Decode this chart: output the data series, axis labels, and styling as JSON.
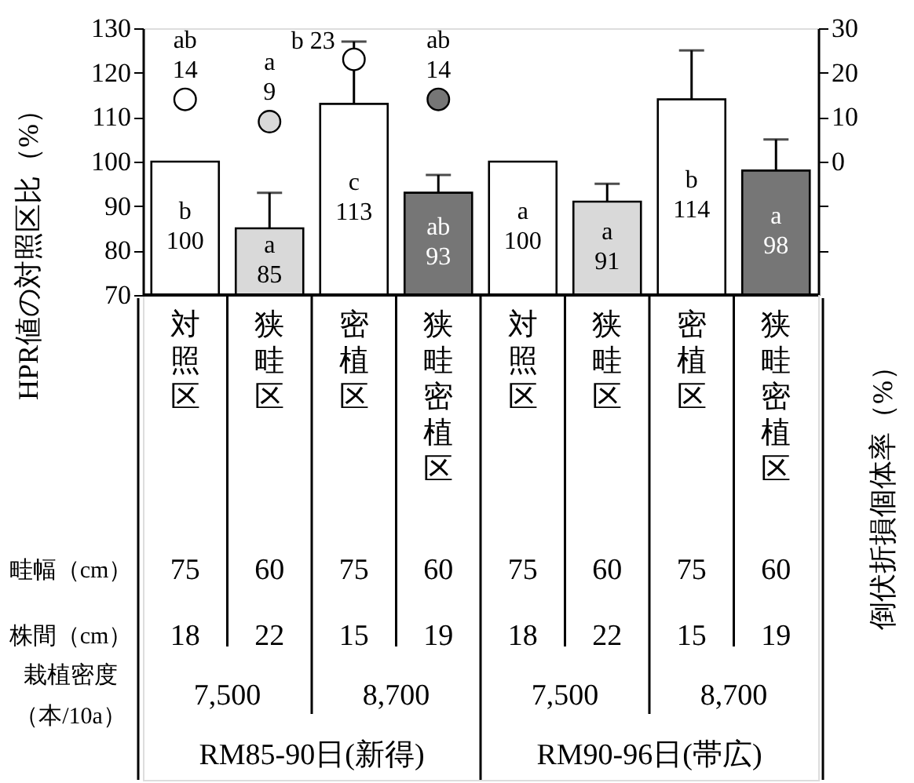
{
  "chart_data": {
    "type": "bar",
    "ylabel": "HPR値の対照区比（%）",
    "y2label": "倒伏折損個体率（%）",
    "categories": [
      "対照区",
      "狭畦区",
      "密植区",
      "狭畦密植区",
      "対照区",
      "狭畦区",
      "密植区",
      "狭畦密植区"
    ],
    "series": [
      {
        "values": [
          100,
          85,
          113,
          93,
          100,
          91,
          114,
          98
        ],
        "colors": [
          "#ffffff",
          "#d9d9d9",
          "#ffffff",
          "#767676",
          "#ffffff",
          "#d9d9d9",
          "#ffffff",
          "#767676"
        ],
        "errors": [
          null,
          [
            85,
            93
          ],
          [
            113,
            127
          ],
          [
            93,
            97
          ],
          null,
          [
            91,
            95
          ],
          [
            114,
            125
          ],
          [
            98,
            105
          ]
        ],
        "value_labels": [
          "b\n100",
          "a\n85",
          "c\n113",
          "ab\n93",
          "a\n100",
          "a\n91",
          "b\n114",
          "a\n98"
        ]
      },
      {
        "type": "scatter",
        "axis": "y2",
        "values": [
          14,
          9,
          23,
          14,
          null,
          null,
          null,
          null
        ],
        "colors": [
          "#ffffff",
          "#d9d9d9",
          "#ffffff",
          "#767676",
          null,
          null,
          null,
          null
        ],
        "value_labels": [
          "ab\n14",
          "a\n9",
          "b 23",
          "ab\n14",
          null,
          null,
          null,
          null
        ]
      }
    ],
    "ylim": [
      70,
      130
    ],
    "yticks": [
      70,
      80,
      90,
      100,
      110,
      120,
      130
    ],
    "y2lim": [
      -30,
      30
    ],
    "y2ticks": [
      {
        "value": -20,
        "label": null
      },
      {
        "value": -10,
        "label": null
      },
      0,
      10,
      20,
      30
    ],
    "marker": "circle",
    "grid": false,
    "annotations": [
      "畦幅（cm）",
      "75",
      "60",
      "75",
      "60",
      "75",
      "60",
      "75",
      "60",
      "株間（cm）",
      "18",
      "22",
      "15",
      "19",
      "18",
      "22",
      "15",
      "19",
      "栽植密度",
      "（本/10a）",
      "7,500",
      "8,700",
      "7,500",
      "8,700",
      "RM85-90日(新得)",
      "RM90-96日(帯広)"
    ]
  }
}
